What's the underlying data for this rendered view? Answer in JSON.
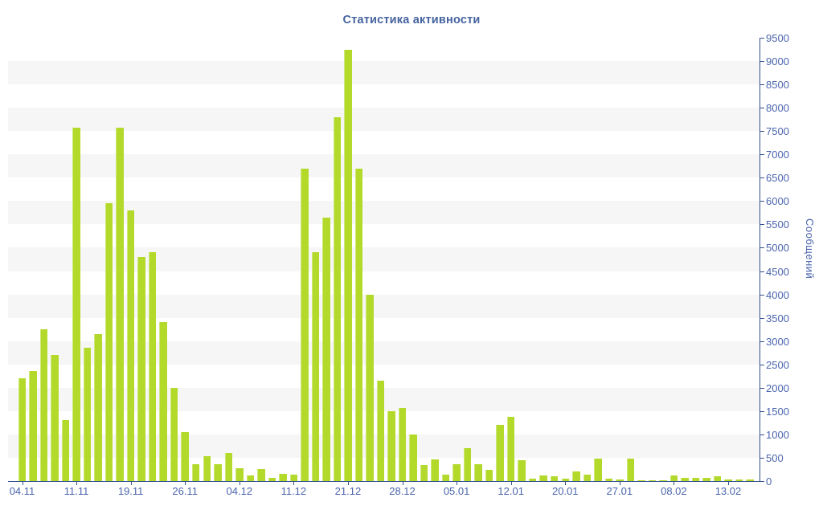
{
  "title": "Статистика активности",
  "chart_data": {
    "type": "bar",
    "title": "Статистика активности",
    "xlabel": "",
    "ylabel": "Сообщений",
    "ylim": [
      0,
      9500
    ],
    "y_tick_step": 500,
    "legend": "none",
    "grid": "alternating horizontal gray bands every 500",
    "x_tick_labels": [
      "04.11",
      "11.11",
      "19.11",
      "26.11",
      "04.12",
      "11.12",
      "21.12",
      "28.12",
      "05.01",
      "12.01",
      "20.01",
      "27.01",
      "08.02",
      "13.02"
    ],
    "x_tick_indices": [
      0,
      5,
      10,
      15,
      20,
      25,
      30,
      35,
      40,
      45,
      50,
      55,
      60,
      65
    ],
    "values": [
      2200,
      2350,
      3250,
      2700,
      1300,
      7570,
      2850,
      3150,
      5950,
      7570,
      5800,
      4800,
      4900,
      3400,
      2000,
      1050,
      370,
      540,
      370,
      610,
      270,
      115,
      250,
      75,
      160,
      130,
      6700,
      4900,
      5650,
      7800,
      9250,
      6700,
      4000,
      2150,
      1500,
      1570,
      1000,
      340,
      470,
      130,
      370,
      710,
      370,
      240,
      1200,
      1370,
      440,
      50,
      120,
      100,
      50,
      200,
      140,
      480,
      60,
      40,
      480,
      20,
      20,
      20,
      125,
      70,
      65,
      75,
      110,
      40,
      40,
      30
    ]
  },
  "colors": {
    "background": "#ffffff",
    "bar": "#b3da2b",
    "bar_highlight": "#cfe87c",
    "stripe": "#f6f6f6",
    "axis": "#33508f",
    "tick_label": "#4a64ad",
    "title": "#44639f"
  }
}
